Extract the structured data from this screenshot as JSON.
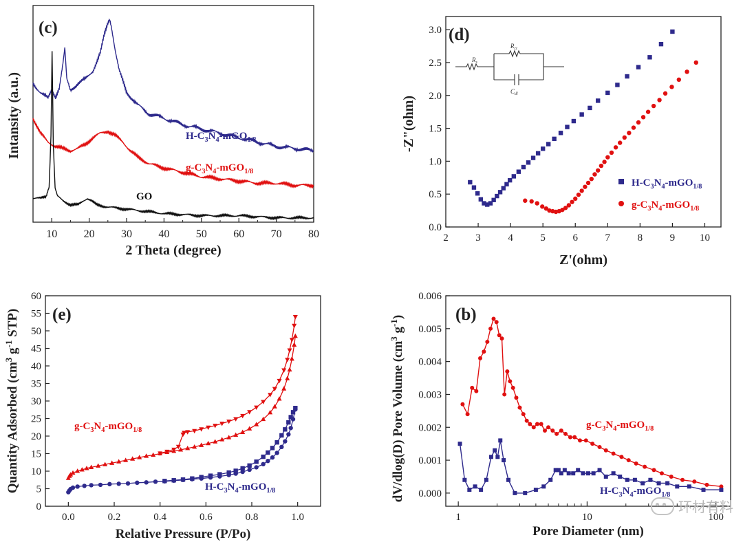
{
  "chart_data": [
    {
      "id": "c",
      "type": "line",
      "panel_label": "(c)",
      "xlabel": "2 Theta (degree)",
      "ylabel": "Intansity (a.u.)",
      "xlim": [
        5,
        80
      ],
      "ylim": [
        0,
        100
      ],
      "xticks": [
        10,
        20,
        30,
        40,
        50,
        60,
        70,
        80
      ],
      "yticks": [],
      "series": [
        {
          "name": "H-C3N4-mGO1/8",
          "label_main": "H-C",
          "sub1": "3",
          "mid": "N",
          "sub2": "4",
          "tail": "-mGO",
          "sub3": "1/8",
          "color": "#2e2a8c",
          "x": [
            5,
            7,
            9,
            10,
            11,
            12,
            13,
            13.5,
            14,
            15,
            17,
            19,
            21,
            23,
            24,
            25,
            25.5,
            26,
            27,
            28,
            30,
            33,
            36,
            40,
            45,
            50,
            55,
            60,
            65,
            70,
            75,
            80
          ],
          "y": [
            64,
            60,
            57,
            61,
            58,
            62,
            73,
            80,
            66,
            61,
            64,
            66,
            70,
            78,
            86,
            92,
            94,
            90,
            79,
            70,
            60,
            54,
            50,
            48,
            45,
            43,
            41,
            39,
            37,
            35,
            34,
            33
          ]
        },
        {
          "name": "g-C3N4-mGO1/8",
          "label_main": "g-C",
          "sub1": "3",
          "mid": "N",
          "sub2": "4",
          "tail": "-mGO",
          "sub3": "1/8",
          "color": "#e01010",
          "x": [
            5,
            7,
            9,
            11,
            13,
            15,
            17,
            19,
            21,
            23,
            25,
            27,
            29,
            31,
            33,
            36,
            40,
            45,
            50,
            55,
            60,
            65,
            70,
            75,
            80
          ],
          "y": [
            48,
            41,
            37,
            35,
            34,
            33,
            34,
            36,
            39,
            41,
            42,
            40,
            37,
            33,
            30,
            27,
            25,
            23,
            21,
            20,
            19,
            18,
            18,
            17,
            17
          ]
        },
        {
          "name": "GO",
          "label_main": "GO",
          "sub1": "",
          "mid": "",
          "sub2": "",
          "tail": "",
          "sub3": "",
          "color": "#111111",
          "x": [
            5,
            7,
            8.5,
            9.3,
            9.8,
            10.1,
            10.4,
            10.9,
            11.5,
            13,
            15,
            17,
            18.5,
            19.5,
            20.5,
            22,
            25,
            30,
            40,
            50,
            60,
            70,
            80
          ],
          "y": [
            11,
            11,
            12,
            16,
            40,
            79,
            37,
            16,
            12,
            10,
            8,
            8,
            10,
            11,
            10,
            8,
            7,
            6,
            4,
            3,
            3,
            2,
            2
          ]
        }
      ]
    },
    {
      "id": "d",
      "type": "scatter",
      "panel_label": "(d)",
      "xlabel": "Z'(ohm)",
      "ylabel": "-Z\"(ohm)",
      "xlim": [
        2,
        10.5
      ],
      "ylim": [
        0,
        3.2
      ],
      "xticks": [
        2,
        3,
        4,
        5,
        6,
        7,
        8,
        9,
        10
      ],
      "yticks": [
        0.0,
        0.5,
        1.0,
        1.5,
        2.0,
        2.5,
        3.0
      ],
      "ytick_labels": [
        "0.0",
        "0.5",
        "1.0",
        "1.5",
        "2.0",
        "2.5",
        "3.0"
      ],
      "circuit_labels": {
        "rs": "R",
        "rs_sub": "s",
        "rct": "R",
        "rct_sub": "ct",
        "cdl": "C",
        "cdl_sub": "dl"
      },
      "series": [
        {
          "name": "H-C3N4-mGO1/8",
          "label_main": "H-C",
          "sub1": "3",
          "mid": "N",
          "sub2": "4",
          "tail": "-mGO",
          "sub3": "1/8",
          "marker": "square",
          "color": "#2e2a8c",
          "x": [
            2.75,
            2.87,
            2.98,
            3.08,
            3.18,
            3.28,
            3.38,
            3.48,
            3.58,
            3.68,
            3.78,
            3.88,
            3.98,
            4.1,
            4.25,
            4.4,
            4.55,
            4.7,
            4.85,
            5.0,
            5.17,
            5.35,
            5.55,
            5.75,
            5.95,
            6.2,
            6.45,
            6.7,
            7.0,
            7.3,
            7.6,
            7.95,
            8.3,
            8.65,
            9.0
          ],
          "y": [
            0.68,
            0.6,
            0.51,
            0.42,
            0.36,
            0.34,
            0.36,
            0.41,
            0.47,
            0.53,
            0.59,
            0.65,
            0.71,
            0.77,
            0.84,
            0.91,
            0.98,
            1.05,
            1.12,
            1.19,
            1.26,
            1.34,
            1.43,
            1.52,
            1.61,
            1.71,
            1.81,
            1.92,
            2.04,
            2.16,
            2.29,
            2.43,
            2.58,
            2.78,
            2.97
          ]
        },
        {
          "name": "g-C3N4-mGO1/8",
          "label_main": "g-C",
          "sub1": "3",
          "mid": "N",
          "sub2": "4",
          "tail": "-mGO",
          "sub3": "1/8",
          "marker": "circle",
          "color": "#e01010",
          "x": [
            4.45,
            4.65,
            4.82,
            4.98,
            5.1,
            5.2,
            5.3,
            5.4,
            5.5,
            5.6,
            5.7,
            5.8,
            5.9,
            6.0,
            6.1,
            6.2,
            6.3,
            6.4,
            6.5,
            6.6,
            6.7,
            6.8,
            6.9,
            7.0,
            7.12,
            7.25,
            7.38,
            7.52,
            7.66,
            7.8,
            7.95,
            8.1,
            8.25,
            8.42,
            8.6,
            8.78,
            8.98,
            9.2,
            9.45,
            9.73
          ],
          "y": [
            0.4,
            0.39,
            0.36,
            0.31,
            0.28,
            0.25,
            0.24,
            0.23,
            0.24,
            0.26,
            0.29,
            0.33,
            0.38,
            0.43,
            0.49,
            0.55,
            0.61,
            0.67,
            0.73,
            0.8,
            0.86,
            0.93,
            0.99,
            1.06,
            1.13,
            1.21,
            1.28,
            1.36,
            1.43,
            1.51,
            1.59,
            1.67,
            1.75,
            1.84,
            1.93,
            2.03,
            2.13,
            2.24,
            2.36,
            2.5
          ]
        }
      ]
    },
    {
      "id": "e",
      "type": "line",
      "panel_label": "(e)",
      "xlabel": "Relative Pressure (P/Po)",
      "ylabel_parts": [
        "Quantity Adsorbed (cm",
        "3",
        " g",
        "-1",
        " STP)"
      ],
      "xlim": [
        -0.1,
        1.1
      ],
      "ylim": [
        0,
        60
      ],
      "xticks": [
        0.0,
        0.2,
        0.4,
        0.6,
        0.8,
        1.0
      ],
      "xtick_labels": [
        "0.0",
        "0.2",
        "0.4",
        "0.6",
        "0.8",
        "1.0"
      ],
      "yticks": [
        0,
        5,
        10,
        15,
        20,
        25,
        30,
        35,
        40,
        45,
        50,
        55,
        60
      ],
      "series": [
        {
          "name": "g-C3N4-mGO1/8 adsorption",
          "label_main": "g-C",
          "sub1": "3",
          "mid": "N",
          "sub2": "4",
          "tail": "-mGO",
          "sub3": "1/8",
          "marker": "triangle-up",
          "color": "#e01010",
          "x": [
            0.0,
            0.005,
            0.01,
            0.02,
            0.04,
            0.06,
            0.08,
            0.1,
            0.13,
            0.16,
            0.19,
            0.22,
            0.25,
            0.28,
            0.31,
            0.34,
            0.37,
            0.4,
            0.43,
            0.46,
            0.49,
            0.52,
            0.55,
            0.58,
            0.61,
            0.64,
            0.67,
            0.7,
            0.73,
            0.76,
            0.79,
            0.82,
            0.85,
            0.88,
            0.9,
            0.92,
            0.94,
            0.955,
            0.965,
            0.975,
            0.985,
            0.99
          ],
          "y": [
            8,
            8.6,
            9,
            9.5,
            10,
            10.4,
            10.8,
            11.1,
            11.5,
            11.9,
            12.3,
            12.7,
            13.1,
            13.5,
            13.9,
            14.3,
            14.6,
            15,
            15.4,
            15.7,
            16.1,
            16.5,
            16.9,
            17.4,
            17.9,
            18.4,
            19,
            19.6,
            20.3,
            21.1,
            22.1,
            23.3,
            24.8,
            26.7,
            28.4,
            30.6,
            33.5,
            36.4,
            38.9,
            42,
            46,
            48.5
          ]
        },
        {
          "name": "g-C3N4-mGO1/8 desorption",
          "label_main": "",
          "sub1": "",
          "mid": "",
          "sub2": "",
          "tail": "",
          "sub3": "",
          "marker": "triangle-down",
          "color": "#e01010",
          "x": [
            0.99,
            0.985,
            0.975,
            0.965,
            0.955,
            0.94,
            0.92,
            0.9,
            0.88,
            0.85,
            0.82,
            0.79,
            0.76,
            0.73,
            0.7,
            0.67,
            0.64,
            0.61,
            0.58,
            0.55,
            0.52,
            0.505,
            0.5,
            0.48,
            0.46,
            0.43,
            0.4
          ],
          "y": [
            54,
            51.5,
            47.5,
            44.5,
            41.8,
            38.8,
            35.8,
            33.5,
            31.8,
            29.8,
            28.2,
            26.9,
            25.8,
            24.9,
            24.2,
            23.6,
            23,
            22.5,
            22,
            21.5,
            21.2,
            21,
            20.5,
            17,
            16.2,
            15.6,
            15.1
          ]
        },
        {
          "name": "H-C3N4-mGO1/8 adsorption",
          "label_main": "H-C",
          "sub1": "3",
          "mid": "N",
          "sub2": "4",
          "tail": "-mGO",
          "sub3": "1/8",
          "marker": "circle",
          "color": "#2e2a8c",
          "x": [
            0.0,
            0.005,
            0.01,
            0.02,
            0.04,
            0.07,
            0.1,
            0.14,
            0.18,
            0.22,
            0.26,
            0.3,
            0.34,
            0.38,
            0.42,
            0.46,
            0.5,
            0.54,
            0.58,
            0.62,
            0.66,
            0.7,
            0.73,
            0.76,
            0.79,
            0.82,
            0.85,
            0.87,
            0.89,
            0.91,
            0.93,
            0.945,
            0.96,
            0.97,
            0.98,
            0.99
          ],
          "y": [
            4,
            4.5,
            4.9,
            5.3,
            5.6,
            5.8,
            6,
            6.1,
            6.3,
            6.4,
            6.5,
            6.7,
            6.8,
            7,
            7.1,
            7.3,
            7.5,
            7.7,
            7.9,
            8.2,
            8.5,
            8.9,
            9.3,
            9.8,
            10.4,
            11.1,
            12,
            12.9,
            13.9,
            15.2,
            16.9,
            18.5,
            20.5,
            22.3,
            24.8,
            27.6
          ]
        },
        {
          "name": "H-C3N4-mGO1/8 desorption",
          "label_main": "",
          "sub1": "",
          "mid": "",
          "sub2": "",
          "tail": "",
          "sub3": "",
          "marker": "square",
          "color": "#2e2a8c",
          "x": [
            0.99,
            0.98,
            0.97,
            0.96,
            0.945,
            0.93,
            0.91,
            0.89,
            0.87,
            0.85,
            0.82,
            0.79,
            0.76,
            0.73,
            0.7,
            0.66,
            0.62,
            0.58,
            0.54,
            0.5,
            0.46,
            0.42
          ],
          "y": [
            28,
            26.8,
            25.4,
            23.9,
            21.9,
            20.2,
            18.2,
            16.6,
            15.3,
            14.1,
            12.7,
            11.6,
            10.8,
            10.1,
            9.6,
            9.1,
            8.7,
            8.3,
            7.9,
            7.6,
            7.4,
            7.2
          ]
        }
      ]
    },
    {
      "id": "b",
      "type": "line",
      "panel_label": "(b)",
      "xlabel": "Pore Diameter (nm)",
      "ylabel_parts": [
        "dV/dlog(D) Pore Volume (cm",
        "3",
        " g",
        "-1",
        ")"
      ],
      "xscale": "log",
      "xlim": [
        0.8,
        130
      ],
      "ylim": [
        -0.0004,
        0.006
      ],
      "xticks": [
        1,
        10,
        100
      ],
      "xtick_labels": [
        "1",
        "10",
        "100"
      ],
      "yticks": [
        0.0,
        0.001,
        0.002,
        0.003,
        0.004,
        0.005,
        0.006
      ],
      "ytick_labels": [
        "0.000",
        "0.001",
        "0.002",
        "0.003",
        "0.004",
        "0.005",
        "0.006"
      ],
      "series": [
        {
          "name": "g-C3N4-mGO1/8",
          "label_main": "g-C",
          "sub1": "3",
          "mid": "N",
          "sub2": "4",
          "tail": "-mGO",
          "sub3": "1/8",
          "marker": "circle",
          "color": "#e01010",
          "x": [
            1.08,
            1.18,
            1.28,
            1.38,
            1.48,
            1.58,
            1.68,
            1.78,
            1.88,
            1.98,
            2.08,
            2.18,
            2.28,
            2.4,
            2.52,
            2.66,
            2.82,
            3.0,
            3.2,
            3.4,
            3.6,
            3.85,
            4.1,
            4.4,
            4.7,
            5.0,
            5.4,
            5.8,
            6.3,
            6.8,
            7.4,
            8.0,
            8.8,
            9.8,
            11,
            12.5,
            14,
            16,
            18.5,
            21,
            24,
            28,
            33,
            38,
            45,
            55,
            68,
            85,
            110
          ],
          "y": [
            0.0027,
            0.0024,
            0.0032,
            0.0031,
            0.0041,
            0.0043,
            0.0046,
            0.005,
            0.0053,
            0.0052,
            0.0048,
            0.0047,
            0.003,
            0.0037,
            0.0034,
            0.0032,
            0.0029,
            0.0026,
            0.0024,
            0.0022,
            0.0021,
            0.002,
            0.0021,
            0.0021,
            0.0019,
            0.002,
            0.0019,
            0.0018,
            0.0019,
            0.0018,
            0.0017,
            0.0017,
            0.0016,
            0.0016,
            0.0015,
            0.0014,
            0.0013,
            0.0012,
            0.0011,
            0.001,
            0.0009,
            0.0008,
            0.0007,
            0.0006,
            0.0005,
            0.0004,
            0.00035,
            0.00025,
            0.0002
          ]
        },
        {
          "name": "H-C3N4-mGO1/8",
          "label_main": "H-C",
          "sub1": "3",
          "mid": "N",
          "sub2": "4",
          "tail": "-mGO",
          "sub3": "1/8",
          "marker": "square",
          "color": "#2e2a8c",
          "x": [
            1.03,
            1.12,
            1.22,
            1.35,
            1.5,
            1.65,
            1.8,
            1.92,
            2.02,
            2.12,
            2.25,
            2.45,
            2.75,
            3.3,
            4.0,
            4.6,
            5.2,
            5.7,
            6.0,
            6.3,
            6.7,
            7.2,
            7.8,
            8.5,
            9.3,
            10.2,
            11.2,
            12.5,
            14,
            16,
            18,
            20.5,
            23.5,
            27,
            31,
            36,
            42,
            50,
            62,
            80,
            110
          ],
          "y": [
            0.0015,
            0.0004,
            0.0001,
            0.0002,
            0.0001,
            0.0004,
            0.0011,
            0.0013,
            0.0011,
            0.0016,
            0.001,
            0.0004,
            0.0,
            0.0,
            0.0001,
            0.0002,
            0.0004,
            0.0007,
            0.0007,
            0.0006,
            0.0007,
            0.0006,
            0.0006,
            0.0007,
            0.0006,
            0.0006,
            0.0006,
            0.0007,
            0.0005,
            0.0006,
            0.0005,
            0.0004,
            0.0004,
            0.0003,
            0.0004,
            0.0003,
            0.0003,
            0.0002,
            0.0002,
            0.0001,
            0.0001
          ]
        }
      ]
    }
  ],
  "watermark": {
    "text": "环材有料"
  }
}
